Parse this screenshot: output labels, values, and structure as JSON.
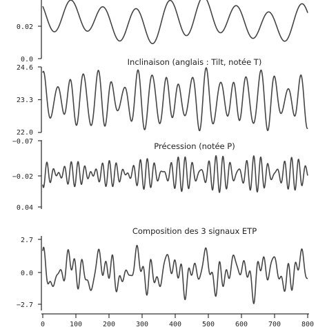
{
  "colors": {
    "line": "#444444",
    "axis": "#333333",
    "text": "#222222",
    "background": "#ffffff"
  },
  "chart_data": [
    {
      "type": "line",
      "title": "",
      "ylim": [
        0.0,
        0.04
      ],
      "yticks": [
        "0.02",
        "0.0"
      ],
      "y_tick_values": [
        0.02,
        0.0
      ],
      "xlim": [
        0,
        800
      ],
      "series": [
        {
          "components": [
            {
              "amp": 0.0115,
              "period": 100,
              "phase": 2.6
            },
            {
              "amp": 0.004,
              "period": 413,
              "phase": 0.5
            },
            {
              "amp": 0.002,
              "period": 125,
              "phase": 1.2
            }
          ],
          "offset": 0.026
        }
      ]
    },
    {
      "type": "line",
      "title": "Inclinaison (anglais : Tilt, notée T)",
      "ylim": [
        22.0,
        24.6
      ],
      "yticks": [
        "24.6",
        "23.3",
        "22.0"
      ],
      "y_tick_values": [
        24.6,
        23.3,
        22.0
      ],
      "xlim": [
        0,
        800
      ],
      "series": [
        {
          "components": [
            {
              "amp": 0.85,
              "period": 41,
              "phase": 1.3
            },
            {
              "amp": 0.3,
              "period": 54,
              "phase": 0.4
            },
            {
              "amp": 0.15,
              "period": 29,
              "phase": 2.0
            }
          ],
          "offset": 23.3
        }
      ]
    },
    {
      "type": "line",
      "title": "Précession (notée P)",
      "ylim": [
        -0.07,
        0.04
      ],
      "yticks": [
        "−0.07",
        "−0.02",
        "0.04"
      ],
      "y_tick_values": [
        -0.07,
        -0.02,
        0.04
      ],
      "y_inverted": true,
      "xlim": [
        0,
        800
      ],
      "series": [
        {
          "components": [
            {
              "amp": 0.014,
              "period": 23,
              "phase": 0.3
            },
            {
              "amp": 0.012,
              "period": 19,
              "phase": 1.1
            },
            {
              "amp": 0.005,
              "period": 22.4,
              "phase": 2.5
            }
          ],
          "offset": -0.015
        }
      ]
    },
    {
      "type": "line",
      "title": "Composition des 3 signaux ETP",
      "ylim": [
        -2.7,
        2.7
      ],
      "yticks": [
        "2.7",
        "0.0",
        "−2.7"
      ],
      "y_tick_values": [
        2.7,
        0.0,
        -2.7
      ],
      "xlim": [
        0,
        800
      ],
      "xticks": [
        "0",
        "100",
        "200",
        "300",
        "400",
        "500",
        "600",
        "700",
        "800"
      ],
      "x_tick_values": [
        0,
        100,
        200,
        300,
        400,
        500,
        600,
        700,
        800
      ],
      "series": [
        {
          "components": [
            {
              "amp": 0.75,
              "period": 100,
              "phase": 2.6
            },
            {
              "amp": 0.7,
              "period": 41,
              "phase": 1.3
            },
            {
              "amp": 0.55,
              "period": 23,
              "phase": 0.3
            },
            {
              "amp": 0.45,
              "period": 19,
              "phase": 1.1
            },
            {
              "amp": 0.3,
              "period": 54,
              "phase": 0.4
            }
          ],
          "offset": 0.0
        }
      ]
    }
  ]
}
